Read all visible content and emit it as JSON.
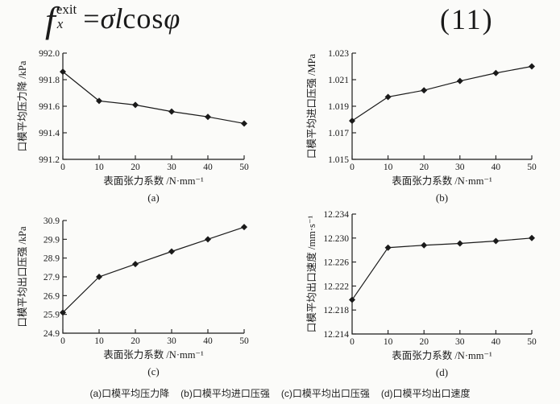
{
  "equation": {
    "lhs_f": "f",
    "lhs_sup": "exit",
    "lhs_sub": "x",
    "equals": "=",
    "rhs_italic1": "σl",
    "rhs_roman": "cos",
    "rhs_italic2": "φ",
    "number": "(11)"
  },
  "caption": {
    "items": [
      "(a)口模平均压力降",
      "(b)口模平均进口压强",
      "(c)口模平均出口压强",
      "(d)口模平均出口速度"
    ]
  },
  "chart_data": [
    {
      "id": "a",
      "type": "line",
      "x": [
        0,
        10,
        20,
        30,
        40,
        50
      ],
      "values": [
        991.86,
        991.64,
        991.61,
        991.56,
        991.52,
        991.47
      ],
      "xlabel": "表面张力系数 /N·mm⁻¹",
      "ylabel": "口模平均压力降 /kPa",
      "sublabel": "(a)",
      "xlim": [
        0,
        50
      ],
      "ylim": [
        991.2,
        992.0
      ],
      "xticks": [
        0,
        10,
        20,
        30,
        40,
        50
      ],
      "xtick_labels": [
        "0",
        "10",
        "20",
        "30",
        "40",
        "50"
      ],
      "yticks": [
        991.2,
        991.4,
        991.6,
        991.8,
        992.0
      ],
      "ytick_labels": [
        "991.2",
        "991.4",
        "991.6",
        "991.8",
        "992.0"
      ],
      "marker": "diamond",
      "line_color": "#1a1a1a",
      "grid": false,
      "legend": null
    },
    {
      "id": "b",
      "type": "line",
      "x": [
        0,
        10,
        20,
        30,
        40,
        50
      ],
      "values": [
        1.0179,
        1.0197,
        1.0202,
        1.0209,
        1.0215,
        1.022
      ],
      "xlabel": "表面张力系数 /N·mm⁻¹",
      "ylabel": "口模平均进口压强 /MPa",
      "sublabel": "(b)",
      "xlim": [
        0,
        50
      ],
      "ylim": [
        1.015,
        1.023
      ],
      "xticks": [
        0,
        10,
        20,
        30,
        40,
        50
      ],
      "xtick_labels": [
        "0",
        "10",
        "20",
        "30",
        "40",
        "50"
      ],
      "yticks": [
        1.015,
        1.017,
        1.019,
        1.021,
        1.023
      ],
      "ytick_labels": [
        "1.015",
        "1.017",
        "1.019",
        "1.021",
        "1.023"
      ],
      "marker": "diamond",
      "line_color": "#1a1a1a",
      "grid": false,
      "legend": null
    },
    {
      "id": "c",
      "type": "line",
      "x": [
        0,
        10,
        20,
        30,
        40,
        50
      ],
      "values": [
        26.0,
        27.9,
        28.58,
        29.25,
        29.9,
        30.55
      ],
      "xlabel": "表面张力系数 /N·mm⁻¹",
      "ylabel": "口模平均出口压强 /kPa",
      "sublabel": "(c)",
      "xlim": [
        0,
        50
      ],
      "ylim": [
        24.9,
        30.9
      ],
      "xticks": [
        0,
        10,
        20,
        30,
        40,
        50
      ],
      "xtick_labels": [
        "0",
        "10",
        "20",
        "30",
        "40",
        "50"
      ],
      "yticks": [
        24.9,
        25.9,
        26.9,
        27.9,
        28.9,
        29.9,
        30.9
      ],
      "ytick_labels": [
        "24.9",
        "25.9",
        "26.9",
        "27.9",
        "28.9",
        "29.9",
        "30.9"
      ],
      "marker": "diamond",
      "line_color": "#1a1a1a",
      "grid": false,
      "legend": null
    },
    {
      "id": "d",
      "type": "line",
      "x": [
        0,
        10,
        20,
        30,
        40,
        50
      ],
      "values": [
        12.2197,
        12.2284,
        12.2288,
        12.2291,
        12.2295,
        12.23
      ],
      "xlabel": "表面张力系数 /N·mm⁻¹",
      "ylabel": "口模平均出口速度 /mm·s⁻¹",
      "sublabel": "(d)",
      "xlim": [
        0,
        50
      ],
      "ylim": [
        12.214,
        12.234
      ],
      "xticks": [
        0,
        10,
        20,
        30,
        40,
        50
      ],
      "xtick_labels": [
        "0",
        "10",
        "20",
        "30",
        "40",
        "50"
      ],
      "yticks": [
        12.214,
        12.218,
        12.222,
        12.226,
        12.23,
        12.234
      ],
      "ytick_labels": [
        "12.214",
        "12.218",
        "12.222",
        "12.226",
        "12.230",
        "12.234"
      ],
      "marker": "diamond",
      "line_color": "#1a1a1a",
      "grid": false,
      "legend": null
    }
  ]
}
